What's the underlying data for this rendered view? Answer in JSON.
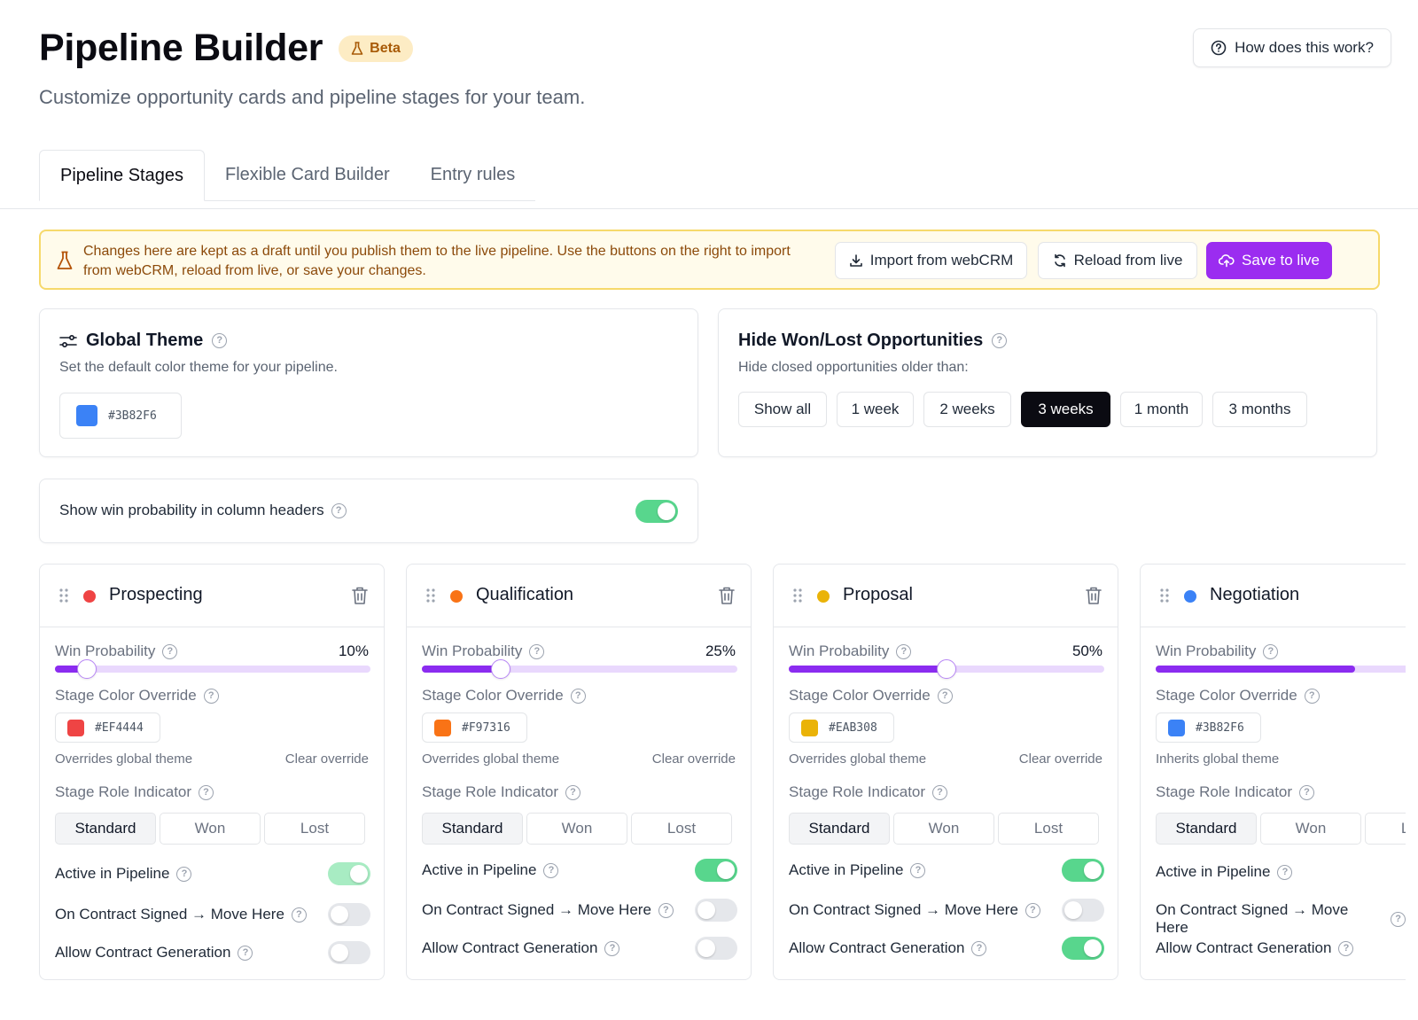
{
  "header": {
    "title": "Pipeline Builder",
    "badge": "Beta",
    "subtitle": "Customize opportunity cards and pipeline stages for your team.",
    "help_button": "How does this work?"
  },
  "tabs": [
    {
      "label": "Pipeline Stages",
      "active": true
    },
    {
      "label": "Flexible Card Builder",
      "active": false
    },
    {
      "label": "Entry rules",
      "active": false
    }
  ],
  "banner": {
    "text": "Changes here are kept as a draft until you publish them to the live pipeline. Use the buttons on the right to import from webCRM, reload from live, or save your changes.",
    "import_label": "Import from webCRM",
    "reload_label": "Reload from live",
    "save_label": "Save to live"
  },
  "global_theme": {
    "title": "Global Theme",
    "description": "Set the default color theme for your pipeline.",
    "color": "#3B82F6"
  },
  "hide_won_lost": {
    "title": "Hide Won/Lost Opportunities",
    "description": "Hide closed opportunities older than:",
    "options": [
      "Show all",
      "1 week",
      "2 weeks",
      "3 weeks",
      "1 month",
      "3 months"
    ],
    "selected": "3 weeks"
  },
  "win_prob_toggle": {
    "label": "Show win probability in column headers",
    "on": true
  },
  "stage_labels": {
    "win_probability": "Win Probability",
    "stage_color_override": "Stage Color Override",
    "overrides_global": "Overrides global theme",
    "inherits_global": "Inherits global theme",
    "clear_override": "Clear override",
    "stage_role_indicator": "Stage Role Indicator",
    "role_standard": "Standard",
    "role_won": "Won",
    "role_lost": "Lost",
    "active_in_pipeline": "Active in Pipeline",
    "on_contract_signed": "On Contract Signed → Move Here",
    "allow_contract_generation": "Allow Contract Generation"
  },
  "stages": [
    {
      "name": "Prospecting",
      "dot_color": "#EF4444",
      "win_probability": "10%",
      "win_fraction": 0.1,
      "color": "#EF4444",
      "role": "Standard",
      "active": true,
      "contract_move": false,
      "contract_gen": false
    },
    {
      "name": "Qualification",
      "dot_color": "#F97316",
      "win_probability": "25%",
      "win_fraction": 0.25,
      "color": "#F97316",
      "role": "Standard",
      "active": true,
      "contract_move": false,
      "contract_gen": false
    },
    {
      "name": "Proposal",
      "dot_color": "#EAB308",
      "win_probability": "50%",
      "win_fraction": 0.5,
      "color": "#EAB308",
      "role": "Standard",
      "active": true,
      "contract_move": false,
      "contract_gen": true
    },
    {
      "name": "Negotiation",
      "dot_color": "#3B82F6",
      "win_fraction": 0.75,
      "color": "#3B82F6",
      "role": "Standard"
    }
  ],
  "colors": {
    "accent": "#9B2CF0",
    "toggle_on": "#58D68D",
    "warning_bg": "#FFFBEB",
    "warning_text": "#8C4A0A"
  }
}
